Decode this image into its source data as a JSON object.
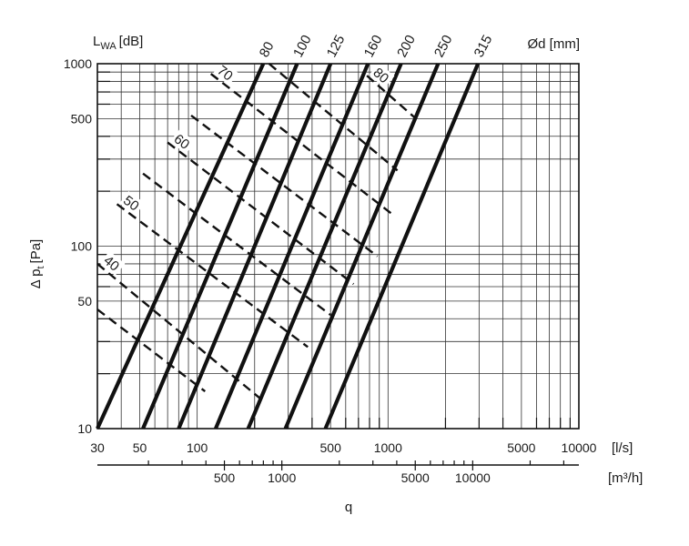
{
  "chart_data": {
    "type": "line",
    "title": "",
    "xlabel": "q",
    "x_unit_primary": "[l/s]",
    "x_unit_secondary": "[m³/h]",
    "ylabel": "Δ pt [Pa]",
    "ylabel_main": "Δ p",
    "ylabel_sub": "t",
    "ylabel_unit": "[Pa]",
    "sound_axis_label": "L",
    "sound_axis_sub": "WA",
    "sound_axis_unit": "[dB]",
    "diameter_axis_label": "Ød [mm]",
    "x_scale": "log",
    "y_scale": "log",
    "xlim": [
      30,
      10000
    ],
    "ylim": [
      10,
      1000
    ],
    "grid": true,
    "x_ticks": [
      "30",
      "50",
      "100",
      "500",
      "1000",
      "5000",
      "10000"
    ],
    "x_ticks_m3h": [
      "500",
      "1000",
      "5000",
      "10000"
    ],
    "y_ticks": [
      "1000",
      "500",
      "100",
      "50",
      "10"
    ],
    "diameter_series": [
      {
        "name": "80",
        "points": [
          [
            30,
            10
          ],
          [
            222,
            1000
          ]
        ]
      },
      {
        "name": "100",
        "points": [
          [
            52,
            10
          ],
          [
            334,
            1000
          ]
        ]
      },
      {
        "name": "125",
        "points": [
          [
            80,
            10
          ],
          [
            500,
            1000
          ]
        ]
      },
      {
        "name": "160",
        "points": [
          [
            125,
            10
          ],
          [
            785,
            1000
          ]
        ]
      },
      {
        "name": "200",
        "points": [
          [
            185,
            10
          ],
          [
            1170,
            1000
          ]
        ]
      },
      {
        "name": "250",
        "points": [
          [
            290,
            10
          ],
          [
            1830,
            1000
          ]
        ]
      },
      {
        "name": "315",
        "points": [
          [
            470,
            10
          ],
          [
            2960,
            1000
          ]
        ]
      }
    ],
    "sound_series": [
      {
        "name": "",
        "points": [
          [
            238,
            1000
          ],
          [
            1120,
            260
          ]
        ]
      },
      {
        "name": "70",
        "points": [
          [
            118,
            880
          ],
          [
            1050,
            150
          ]
        ]
      },
      {
        "name": "",
        "points": [
          [
            93,
            520
          ],
          [
            880,
            88
          ]
        ]
      },
      {
        "name": "60",
        "points": [
          [
            70,
            370
          ],
          [
            660,
            62
          ]
        ]
      },
      {
        "name": "",
        "points": [
          [
            52,
            250
          ],
          [
            500,
            42
          ]
        ]
      },
      {
        "name": "50",
        "points": [
          [
            38,
            170
          ],
          [
            380,
            28
          ]
        ]
      },
      {
        "name": "40",
        "points": [
          [
            30,
            80
          ],
          [
            225,
            14
          ]
        ]
      },
      {
        "name": "",
        "points": [
          [
            30,
            45
          ],
          [
            110,
            16
          ]
        ]
      },
      {
        "name": "80",
        "points": [
          [
            775,
            860
          ],
          [
            1400,
            500
          ]
        ]
      }
    ]
  }
}
